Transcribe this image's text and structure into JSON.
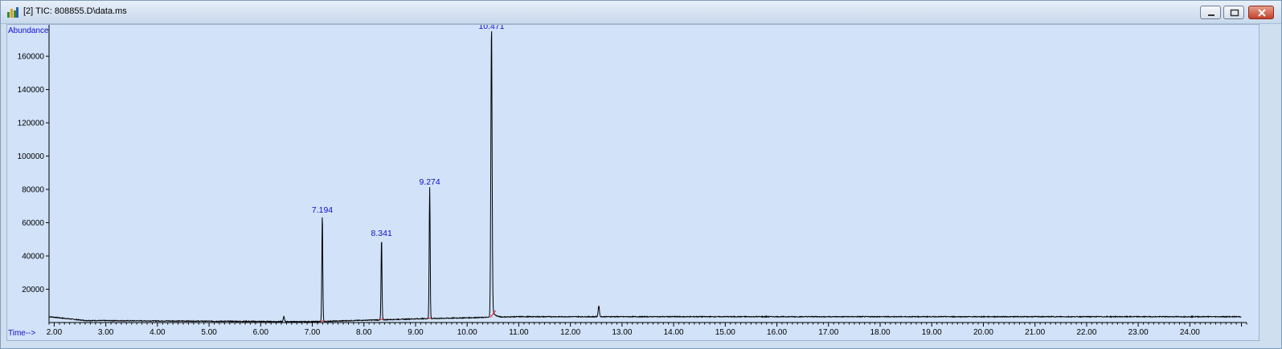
{
  "window": {
    "title": "[2] TIC: 808855.D\\data.ms",
    "icon": "chromatogram-app-icon",
    "buttons": [
      "minimize-icon",
      "maximize-icon",
      "close-icon"
    ]
  },
  "chart_data": {
    "type": "line",
    "title": "",
    "xlabel": "Time-->",
    "ylabel": "Abundance",
    "xlim": [
      1.9,
      25.1
    ],
    "ylim": [
      0,
      175000
    ],
    "x_ticks": [
      "2.00",
      "3.00",
      "4.00",
      "5.00",
      "6.00",
      "7.00",
      "8.00",
      "9.00",
      "10.00",
      "11.00",
      "12.00",
      "13.00",
      "14.00",
      "15.00",
      "16.00",
      "17.00",
      "18.00",
      "19.00",
      "20.00",
      "21.00",
      "22.00",
      "23.00",
      "24.00"
    ],
    "y_ticks": [
      "20000",
      "40000",
      "60000",
      "80000",
      "100000",
      "120000",
      "140000",
      "160000"
    ],
    "grid": false,
    "line_color": "#000000",
    "baseline_color": "#ff0000",
    "peaks": [
      {
        "label": "7.194",
        "time": 7.194,
        "abundance": 64500
      },
      {
        "label": "8.341",
        "time": 8.341,
        "abundance": 50500
      },
      {
        "label": "9.274",
        "time": 9.274,
        "abundance": 81500
      },
      {
        "label": "10.471",
        "time": 10.471,
        "abundance": 175000
      }
    ],
    "minor_peaks": [
      {
        "time": 6.45,
        "abundance": 3500
      },
      {
        "time": 12.55,
        "abundance": 10000
      }
    ],
    "baseline_level": [
      {
        "time": 1.9,
        "abundance": 3500
      },
      {
        "time": 2.6,
        "abundance": 1200
      },
      {
        "time": 7.0,
        "abundance": 500
      },
      {
        "time": 9.0,
        "abundance": 2200
      },
      {
        "time": 11.0,
        "abundance": 3500
      },
      {
        "time": 25.0,
        "abundance": 3500
      }
    ]
  }
}
